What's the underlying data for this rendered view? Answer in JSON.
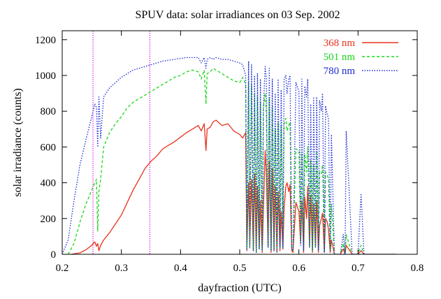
{
  "chart_data": {
    "type": "line",
    "title": "SPUV data: solar irradiances on 03 Sep. 2002",
    "xlabel": "dayfraction (UTC)",
    "ylabel": "solar irradiance (counts)",
    "xlim": [
      0.2,
      0.8
    ],
    "ylim": [
      0,
      1250
    ],
    "xticks": [
      "0.2",
      "0.3",
      "0.4",
      "0.5",
      "0.6",
      "0.7",
      "0.8"
    ],
    "yticks": [
      "0",
      "200",
      "400",
      "600",
      "800",
      "1000",
      "1200"
    ],
    "grid": false,
    "legend_position": "top-right",
    "vertical_markers": [
      0.252,
      0.348
    ],
    "marker_color": "#e000e0",
    "series": [
      {
        "name": "368 nm",
        "color": "#e8321c",
        "dash": "solid",
        "x": [
          0.215,
          0.23,
          0.24,
          0.25,
          0.255,
          0.258,
          0.26,
          0.262,
          0.265,
          0.27,
          0.28,
          0.29,
          0.3,
          0.31,
          0.32,
          0.33,
          0.34,
          0.35,
          0.36,
          0.37,
          0.38,
          0.39,
          0.4,
          0.41,
          0.42,
          0.43,
          0.435,
          0.44,
          0.443,
          0.445,
          0.45,
          0.455,
          0.46,
          0.47,
          0.48,
          0.49,
          0.5,
          0.505,
          0.51,
          0.512,
          0.515,
          0.517,
          0.52,
          0.523,
          0.525,
          0.528,
          0.53,
          0.533,
          0.535,
          0.538,
          0.54,
          0.543,
          0.545,
          0.548,
          0.55,
          0.553,
          0.555,
          0.558,
          0.56,
          0.563,
          0.565,
          0.568,
          0.57,
          0.573,
          0.575,
          0.578,
          0.58,
          0.583,
          0.585,
          0.588,
          0.59,
          0.595,
          0.6,
          0.603,
          0.605,
          0.608,
          0.61,
          0.613,
          0.615,
          0.618,
          0.62,
          0.623,
          0.625,
          0.628,
          0.63,
          0.633,
          0.635,
          0.638,
          0.64,
          0.643,
          0.645,
          0.648,
          0.65,
          0.653,
          0.655,
          0.66,
          0.67,
          0.675,
          0.678,
          0.68,
          0.69,
          0.7,
          0.705,
          0.71,
          0.75,
          0.765
        ],
        "y": [
          0,
          8,
          25,
          50,
          70,
          45,
          60,
          20,
          50,
          80,
          120,
          170,
          220,
          290,
          360,
          420,
          480,
          520,
          550,
          590,
          610,
          630,
          655,
          680,
          700,
          720,
          690,
          730,
          580,
          700,
          710,
          740,
          750,
          720,
          730,
          690,
          670,
          650,
          680,
          20,
          400,
          50,
          420,
          20,
          450,
          10,
          380,
          30,
          300,
          10,
          250,
          580,
          450,
          40,
          520,
          10,
          480,
          20,
          380,
          10,
          350,
          20,
          240,
          30,
          260,
          380,
          400,
          350,
          390,
          20,
          10,
          290,
          240,
          60,
          300,
          10,
          320,
          200,
          380,
          40,
          330,
          10,
          280,
          40,
          300,
          10,
          160,
          200,
          230,
          10,
          200,
          180,
          140,
          10,
          80,
          0,
          0,
          30,
          0,
          50,
          0,
          0,
          20,
          0,
          0,
          0
        ]
      },
      {
        "name": "501 nm",
        "color": "#18d818",
        "dash": "4,3",
        "x": [
          0.21,
          0.22,
          0.23,
          0.24,
          0.25,
          0.258,
          0.26,
          0.262,
          0.265,
          0.27,
          0.28,
          0.29,
          0.3,
          0.31,
          0.32,
          0.33,
          0.34,
          0.35,
          0.36,
          0.37,
          0.38,
          0.39,
          0.4,
          0.41,
          0.42,
          0.43,
          0.435,
          0.44,
          0.443,
          0.445,
          0.45,
          0.455,
          0.46,
          0.47,
          0.48,
          0.49,
          0.5,
          0.505,
          0.51,
          0.512,
          0.515,
          0.517,
          0.52,
          0.523,
          0.525,
          0.528,
          0.53,
          0.533,
          0.535,
          0.538,
          0.54,
          0.543,
          0.545,
          0.548,
          0.55,
          0.553,
          0.555,
          0.558,
          0.56,
          0.563,
          0.565,
          0.568,
          0.57,
          0.573,
          0.575,
          0.578,
          0.58,
          0.583,
          0.585,
          0.588,
          0.59,
          0.595,
          0.6,
          0.603,
          0.605,
          0.608,
          0.61,
          0.613,
          0.615,
          0.618,
          0.62,
          0.623,
          0.625,
          0.628,
          0.63,
          0.633,
          0.635,
          0.638,
          0.64,
          0.643,
          0.645,
          0.648,
          0.65,
          0.653,
          0.655,
          0.66,
          0.67,
          0.675,
          0.678,
          0.68,
          0.69,
          0.7,
          0.705,
          0.71,
          0.75,
          0.765
        ],
        "y": [
          0,
          60,
          180,
          280,
          360,
          420,
          130,
          350,
          420,
          600,
          680,
          730,
          770,
          820,
          850,
          870,
          890,
          910,
          930,
          950,
          970,
          990,
          1000,
          1020,
          1030,
          1020,
          980,
          1030,
          840,
          1010,
          1020,
          1040,
          1030,
          1010,
          990,
          970,
          960,
          990,
          950,
          30,
          960,
          40,
          950,
          20,
          900,
          10,
          880,
          30,
          850,
          20,
          820,
          900,
          780,
          40,
          870,
          20,
          830,
          30,
          700,
          10,
          740,
          40,
          720,
          30,
          730,
          760,
          690,
          720,
          740,
          30,
          20,
          590,
          580,
          60,
          560,
          20,
          560,
          460,
          600,
          40,
          530,
          20,
          500,
          40,
          570,
          20,
          460,
          450,
          500,
          10,
          460,
          440,
          420,
          20,
          280,
          0,
          0,
          60,
          0,
          110,
          0,
          0,
          50,
          0,
          0,
          0
        ]
      },
      {
        "name": "780 nm",
        "color": "#1c2cd0",
        "dash": "1.5,2",
        "x": [
          0.2,
          0.21,
          0.22,
          0.23,
          0.24,
          0.25,
          0.255,
          0.258,
          0.26,
          0.262,
          0.265,
          0.27,
          0.28,
          0.29,
          0.3,
          0.31,
          0.32,
          0.33,
          0.34,
          0.35,
          0.36,
          0.37,
          0.38,
          0.39,
          0.4,
          0.41,
          0.42,
          0.43,
          0.435,
          0.44,
          0.443,
          0.445,
          0.45,
          0.455,
          0.46,
          0.47,
          0.48,
          0.49,
          0.5,
          0.505,
          0.51,
          0.512,
          0.515,
          0.517,
          0.52,
          0.523,
          0.525,
          0.528,
          0.53,
          0.533,
          0.535,
          0.538,
          0.54,
          0.543,
          0.545,
          0.548,
          0.55,
          0.553,
          0.555,
          0.558,
          0.56,
          0.563,
          0.565,
          0.568,
          0.57,
          0.573,
          0.575,
          0.578,
          0.58,
          0.583,
          0.585,
          0.588,
          0.59,
          0.595,
          0.6,
          0.603,
          0.605,
          0.608,
          0.61,
          0.613,
          0.615,
          0.618,
          0.62,
          0.623,
          0.625,
          0.628,
          0.63,
          0.633,
          0.635,
          0.638,
          0.64,
          0.643,
          0.645,
          0.648,
          0.65,
          0.653,
          0.655,
          0.66,
          0.67,
          0.675,
          0.678,
          0.68,
          0.69,
          0.7,
          0.705,
          0.71,
          0.75,
          0.765
        ],
        "y": [
          0,
          80,
          300,
          500,
          640,
          770,
          840,
          820,
          600,
          880,
          650,
          880,
          930,
          960,
          990,
          1010,
          1030,
          1040,
          1050,
          1060,
          1070,
          1080,
          1085,
          1090,
          1095,
          1100,
          1100,
          1100,
          1070,
          1100,
          1040,
          1090,
          1100,
          1090,
          1100,
          1090,
          1090,
          1080,
          1070,
          1060,
          1000,
          30,
          1080,
          30,
          1060,
          20,
          1000,
          10,
          1010,
          30,
          980,
          20,
          820,
          1050,
          980,
          40,
          1040,
          20,
          980,
          20,
          900,
          10,
          980,
          40,
          920,
          30,
          980,
          1000,
          900,
          980,
          1000,
          30,
          20,
          960,
          910,
          50,
          980,
          20,
          940,
          880,
          980,
          40,
          840,
          20,
          880,
          40,
          880,
          20,
          860,
          800,
          900,
          10,
          830,
          780,
          760,
          20,
          670,
          0,
          0,
          110,
          0,
          690,
          0,
          0,
          340,
          0,
          0,
          0
        ]
      }
    ]
  }
}
